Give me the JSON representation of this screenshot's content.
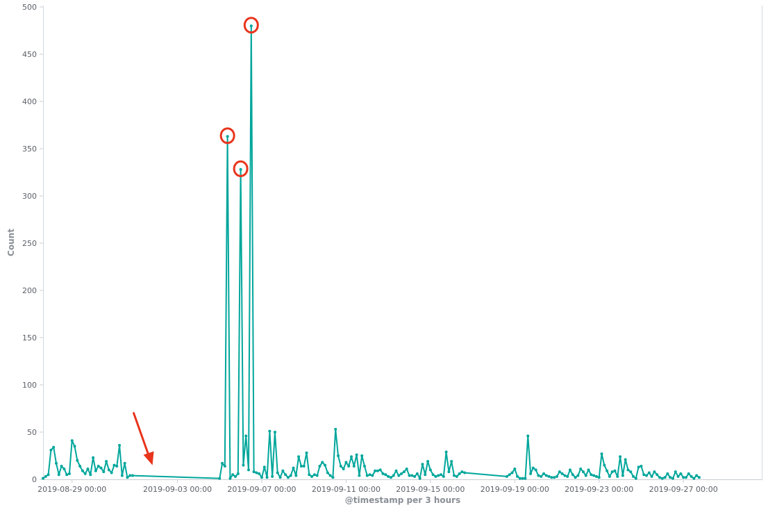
{
  "chart_data": {
    "type": "line",
    "xlabel": "@timestamp per 3 hours",
    "ylabel": "Count",
    "ylim": [
      0,
      500
    ],
    "xlim": [
      "2019-08-27T15:00",
      "2019-09-30T18:00"
    ],
    "y_ticks": [
      0,
      50,
      100,
      150,
      200,
      250,
      300,
      350,
      400,
      450,
      500
    ],
    "x_ticks": [
      {
        "t": "2019-08-29T00:00",
        "label": "2019-08-29 00:00"
      },
      {
        "t": "2019-09-03T00:00",
        "label": "2019-09-03 00:00"
      },
      {
        "t": "2019-09-07T00:00",
        "label": "2019-09-07 00:00"
      },
      {
        "t": "2019-09-11T00:00",
        "label": "2019-09-11 00:00"
      },
      {
        "t": "2019-09-15T00:00",
        "label": "2019-09-15 00:00"
      },
      {
        "t": "2019-09-19T00:00",
        "label": "2019-09-19 00:00"
      },
      {
        "t": "2019-09-23T00:00",
        "label": "2019-09-23 00:00"
      },
      {
        "t": "2019-09-27T00:00",
        "label": "2019-09-27 00:00"
      }
    ],
    "grid": false,
    "series": [
      {
        "color": "#00a69b",
        "points": [
          [
            "2019-08-27T15:00",
            1
          ],
          [
            "2019-08-27T18:00",
            3
          ],
          [
            "2019-08-27T21:00",
            5
          ],
          [
            "2019-08-28T00:00",
            31
          ],
          [
            "2019-08-28T03:00",
            34
          ],
          [
            "2019-08-28T06:00",
            17
          ],
          [
            "2019-08-28T09:00",
            5
          ],
          [
            "2019-08-28T12:00",
            14
          ],
          [
            "2019-08-28T15:00",
            11
          ],
          [
            "2019-08-28T18:00",
            5
          ],
          [
            "2019-08-28T21:00",
            6
          ],
          [
            "2019-08-29T00:00",
            41
          ],
          [
            "2019-08-29T03:00",
            35
          ],
          [
            "2019-08-29T06:00",
            20
          ],
          [
            "2019-08-29T09:00",
            14
          ],
          [
            "2019-08-29T12:00",
            9
          ],
          [
            "2019-08-29T15:00",
            6
          ],
          [
            "2019-08-29T18:00",
            11
          ],
          [
            "2019-08-29T21:00",
            5
          ],
          [
            "2019-08-30T00:00",
            23
          ],
          [
            "2019-08-30T03:00",
            9
          ],
          [
            "2019-08-30T06:00",
            14
          ],
          [
            "2019-08-30T09:00",
            12
          ],
          [
            "2019-08-30T12:00",
            8
          ],
          [
            "2019-08-30T15:00",
            19
          ],
          [
            "2019-08-30T18:00",
            10
          ],
          [
            "2019-08-30T21:00",
            7
          ],
          [
            "2019-08-31T00:00",
            15
          ],
          [
            "2019-08-31T03:00",
            14
          ],
          [
            "2019-08-31T06:00",
            36
          ],
          [
            "2019-08-31T09:00",
            4
          ],
          [
            "2019-08-31T12:00",
            17
          ],
          [
            "2019-08-31T15:00",
            2
          ],
          [
            "2019-08-31T18:00",
            4
          ],
          [
            "2019-08-31T21:00",
            4
          ],
          [
            "2019-09-05T00:00",
            1
          ],
          [
            "2019-09-05T03:00",
            17
          ],
          [
            "2019-09-05T06:00",
            14
          ],
          [
            "2019-09-05T09:00",
            363
          ],
          [
            "2019-09-05T12:00",
            1
          ],
          [
            "2019-09-05T15:00",
            5
          ],
          [
            "2019-09-05T18:00",
            3
          ],
          [
            "2019-09-05T21:00",
            6
          ],
          [
            "2019-09-06T00:00",
            328
          ],
          [
            "2019-09-06T03:00",
            15
          ],
          [
            "2019-09-06T06:00",
            46
          ],
          [
            "2019-09-06T09:00",
            10
          ],
          [
            "2019-09-06T12:00",
            480
          ],
          [
            "2019-09-06T15:00",
            8
          ],
          [
            "2019-09-06T18:00",
            7
          ],
          [
            "2019-09-06T21:00",
            6
          ],
          [
            "2019-09-07T00:00",
            2
          ],
          [
            "2019-09-07T03:00",
            13
          ],
          [
            "2019-09-07T06:00",
            2
          ],
          [
            "2019-09-07T09:00",
            51
          ],
          [
            "2019-09-07T12:00",
            3
          ],
          [
            "2019-09-07T15:00",
            50
          ],
          [
            "2019-09-07T18:00",
            7
          ],
          [
            "2019-09-07T21:00",
            2
          ],
          [
            "2019-09-08T00:00",
            9
          ],
          [
            "2019-09-08T03:00",
            5
          ],
          [
            "2019-09-08T06:00",
            2
          ],
          [
            "2019-09-08T09:00",
            4
          ],
          [
            "2019-09-08T12:00",
            12
          ],
          [
            "2019-09-08T15:00",
            4
          ],
          [
            "2019-09-08T18:00",
            24
          ],
          [
            "2019-09-08T21:00",
            14
          ],
          [
            "2019-09-09T00:00",
            14
          ],
          [
            "2019-09-09T03:00",
            28
          ],
          [
            "2019-09-09T06:00",
            5
          ],
          [
            "2019-09-09T09:00",
            3
          ],
          [
            "2019-09-09T12:00",
            5
          ],
          [
            "2019-09-09T15:00",
            4
          ],
          [
            "2019-09-09T18:00",
            14
          ],
          [
            "2019-09-09T21:00",
            18
          ],
          [
            "2019-09-10T00:00",
            15
          ],
          [
            "2019-09-10T03:00",
            7
          ],
          [
            "2019-09-10T06:00",
            4
          ],
          [
            "2019-09-10T09:00",
            2
          ],
          [
            "2019-09-10T12:00",
            53
          ],
          [
            "2019-09-10T15:00",
            25
          ],
          [
            "2019-09-10T18:00",
            14
          ],
          [
            "2019-09-10T21:00",
            11
          ],
          [
            "2019-09-11T00:00",
            18
          ],
          [
            "2019-09-11T03:00",
            14
          ],
          [
            "2019-09-11T06:00",
            24
          ],
          [
            "2019-09-11T09:00",
            14
          ],
          [
            "2019-09-11T12:00",
            26
          ],
          [
            "2019-09-11T15:00",
            4
          ],
          [
            "2019-09-11T18:00",
            25
          ],
          [
            "2019-09-11T21:00",
            14
          ],
          [
            "2019-09-12T00:00",
            4
          ],
          [
            "2019-09-12T03:00",
            5
          ],
          [
            "2019-09-12T06:00",
            4
          ],
          [
            "2019-09-12T09:00",
            9
          ],
          [
            "2019-09-12T12:00",
            9
          ],
          [
            "2019-09-12T15:00",
            10
          ],
          [
            "2019-09-12T18:00",
            6
          ],
          [
            "2019-09-12T21:00",
            5
          ],
          [
            "2019-09-13T00:00",
            3
          ],
          [
            "2019-09-13T03:00",
            2
          ],
          [
            "2019-09-13T06:00",
            4
          ],
          [
            "2019-09-13T09:00",
            9
          ],
          [
            "2019-09-13T12:00",
            4
          ],
          [
            "2019-09-13T15:00",
            6
          ],
          [
            "2019-09-13T18:00",
            8
          ],
          [
            "2019-09-13T21:00",
            11
          ],
          [
            "2019-09-14T00:00",
            4
          ],
          [
            "2019-09-14T03:00",
            4
          ],
          [
            "2019-09-14T06:00",
            3
          ],
          [
            "2019-09-14T09:00",
            6
          ],
          [
            "2019-09-14T12:00",
            1
          ],
          [
            "2019-09-14T15:00",
            16
          ],
          [
            "2019-09-14T18:00",
            5
          ],
          [
            "2019-09-14T21:00",
            19
          ],
          [
            "2019-09-15T00:00",
            10
          ],
          [
            "2019-09-15T03:00",
            5
          ],
          [
            "2019-09-15T06:00",
            3
          ],
          [
            "2019-09-15T09:00",
            4
          ],
          [
            "2019-09-15T12:00",
            5
          ],
          [
            "2019-09-15T15:00",
            3
          ],
          [
            "2019-09-15T18:00",
            29
          ],
          [
            "2019-09-15T21:00",
            8
          ],
          [
            "2019-09-16T00:00",
            19
          ],
          [
            "2019-09-16T03:00",
            4
          ],
          [
            "2019-09-16T06:00",
            3
          ],
          [
            "2019-09-16T09:00",
            6
          ],
          [
            "2019-09-16T12:00",
            8
          ],
          [
            "2019-09-16T15:00",
            7
          ],
          [
            "2019-09-18T15:00",
            3
          ],
          [
            "2019-09-18T18:00",
            5
          ],
          [
            "2019-09-18T21:00",
            7
          ],
          [
            "2019-09-19T00:00",
            11
          ],
          [
            "2019-09-19T03:00",
            3
          ],
          [
            "2019-09-19T06:00",
            1
          ],
          [
            "2019-09-19T09:00",
            1
          ],
          [
            "2019-09-19T12:00",
            1
          ],
          [
            "2019-09-19T15:00",
            46
          ],
          [
            "2019-09-19T18:00",
            6
          ],
          [
            "2019-09-19T21:00",
            12
          ],
          [
            "2019-09-20T00:00",
            10
          ],
          [
            "2019-09-20T03:00",
            4
          ],
          [
            "2019-09-20T06:00",
            3
          ],
          [
            "2019-09-20T09:00",
            6
          ],
          [
            "2019-09-20T12:00",
            4
          ],
          [
            "2019-09-20T15:00",
            3
          ],
          [
            "2019-09-20T18:00",
            2
          ],
          [
            "2019-09-20T21:00",
            2
          ],
          [
            "2019-09-21T00:00",
            3
          ],
          [
            "2019-09-21T03:00",
            8
          ],
          [
            "2019-09-21T06:00",
            6
          ],
          [
            "2019-09-21T09:00",
            4
          ],
          [
            "2019-09-21T12:00",
            3
          ],
          [
            "2019-09-21T15:00",
            10
          ],
          [
            "2019-09-21T18:00",
            5
          ],
          [
            "2019-09-21T21:00",
            2
          ],
          [
            "2019-09-22T00:00",
            4
          ],
          [
            "2019-09-22T03:00",
            11
          ],
          [
            "2019-09-22T06:00",
            8
          ],
          [
            "2019-09-22T09:00",
            4
          ],
          [
            "2019-09-22T12:00",
            10
          ],
          [
            "2019-09-22T15:00",
            5
          ],
          [
            "2019-09-22T18:00",
            4
          ],
          [
            "2019-09-22T21:00",
            3
          ],
          [
            "2019-09-23T00:00",
            2
          ],
          [
            "2019-09-23T03:00",
            27
          ],
          [
            "2019-09-23T06:00",
            15
          ],
          [
            "2019-09-23T09:00",
            9
          ],
          [
            "2019-09-23T12:00",
            3
          ],
          [
            "2019-09-23T15:00",
            8
          ],
          [
            "2019-09-23T18:00",
            9
          ],
          [
            "2019-09-23T21:00",
            3
          ],
          [
            "2019-09-24T00:00",
            24
          ],
          [
            "2019-09-24T03:00",
            4
          ],
          [
            "2019-09-24T06:00",
            21
          ],
          [
            "2019-09-24T09:00",
            10
          ],
          [
            "2019-09-24T12:00",
            8
          ],
          [
            "2019-09-24T15:00",
            3
          ],
          [
            "2019-09-24T18:00",
            1
          ],
          [
            "2019-09-24T21:00",
            13
          ],
          [
            "2019-09-25T00:00",
            14
          ],
          [
            "2019-09-25T03:00",
            5
          ],
          [
            "2019-09-25T06:00",
            4
          ],
          [
            "2019-09-25T09:00",
            7
          ],
          [
            "2019-09-25T12:00",
            3
          ],
          [
            "2019-09-25T15:00",
            8
          ],
          [
            "2019-09-25T18:00",
            5
          ],
          [
            "2019-09-25T21:00",
            2
          ],
          [
            "2019-09-26T00:00",
            1
          ],
          [
            "2019-09-26T03:00",
            2
          ],
          [
            "2019-09-26T06:00",
            6
          ],
          [
            "2019-09-26T09:00",
            2
          ],
          [
            "2019-09-26T12:00",
            1
          ],
          [
            "2019-09-26T15:00",
            8
          ],
          [
            "2019-09-26T18:00",
            3
          ],
          [
            "2019-09-26T21:00",
            6
          ],
          [
            "2019-09-27T00:00",
            2
          ],
          [
            "2019-09-27T03:00",
            2
          ],
          [
            "2019-09-27T06:00",
            6
          ],
          [
            "2019-09-27T09:00",
            3
          ],
          [
            "2019-09-27T12:00",
            1
          ],
          [
            "2019-09-27T15:00",
            4
          ],
          [
            "2019-09-27T18:00",
            2
          ]
        ]
      }
    ],
    "annotations": [
      {
        "type": "circle",
        "t": "2019-09-05T09:00",
        "y": 363,
        "color": "#e8341c"
      },
      {
        "type": "circle",
        "t": "2019-09-06T00:00",
        "y": 328,
        "color": "#e8341c"
      },
      {
        "type": "circle",
        "t": "2019-09-06T12:00",
        "y": 480,
        "color": "#e8341c"
      },
      {
        "type": "arrow",
        "t": "2019-09-03T00:00",
        "y": 12,
        "color": "#e8341c"
      }
    ]
  }
}
